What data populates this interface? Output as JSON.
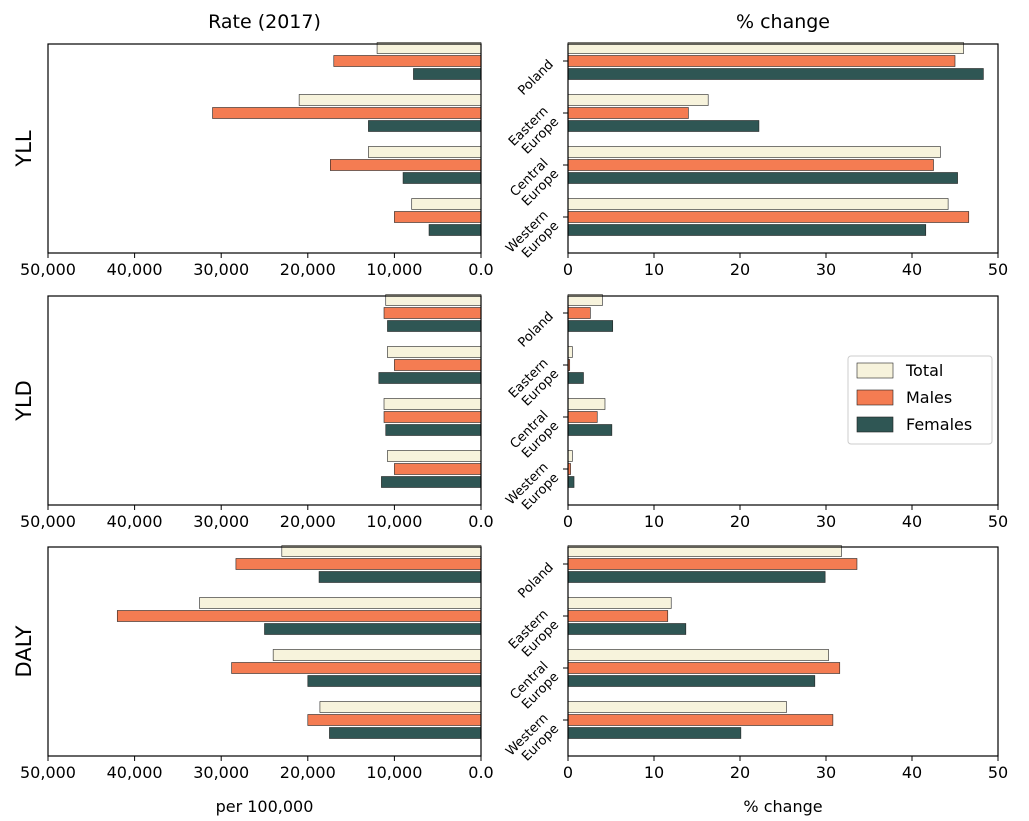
{
  "chart_data": {
    "type": "bar",
    "orientation": "horizontal",
    "column_titles": [
      "Rate (2017)",
      "% change"
    ],
    "row_labels": [
      "YLL",
      "YLD",
      "DALY"
    ],
    "categories": [
      "Poland",
      "Eastern Europe",
      "Central Europe",
      "Western Europe"
    ],
    "category_label_lines": [
      [
        "Poland"
      ],
      [
        "Eastern",
        "Europe"
      ],
      [
        "Central",
        "Europe"
      ],
      [
        "Western",
        "Europe"
      ]
    ],
    "series_names": [
      "Total",
      "Males",
      "Females"
    ],
    "colors": {
      "Total": "#f7f3dc",
      "Males": "#f47c52",
      "Females": "#2f5654"
    },
    "rate_axis": {
      "xlim": [
        50000,
        0
      ],
      "ticks": [
        50000,
        40000,
        30000,
        20000,
        10000,
        0
      ],
      "tick_labels": [
        "50,000",
        "40,000",
        "30,000",
        "20,000",
        "10,000",
        "0.0"
      ],
      "xlabel": "per 100,000",
      "inverted": true
    },
    "change_axis": {
      "xlim": [
        0,
        50
      ],
      "ticks": [
        0,
        10,
        20,
        30,
        40,
        50
      ],
      "tick_labels": [
        "0",
        "10",
        "20",
        "30",
        "40",
        "50"
      ],
      "xlabel": "% change"
    },
    "legend": {
      "entries": [
        "Total",
        "Males",
        "Females"
      ],
      "placement": "right"
    },
    "panels": [
      {
        "row": "YLL",
        "column": "Rate (2017)",
        "series": [
          {
            "name": "Total",
            "values": [
              12000,
              21000,
              13000,
              8000
            ]
          },
          {
            "name": "Males",
            "values": [
              17000,
              31000,
              17400,
              10000
            ]
          },
          {
            "name": "Females",
            "values": [
              7800,
              13000,
              9000,
              6000
            ]
          }
        ]
      },
      {
        "row": "YLL",
        "column": "% change",
        "series": [
          {
            "name": "Total",
            "values": [
              46,
              16.3,
              43.3,
              44.2
            ]
          },
          {
            "name": "Males",
            "values": [
              45,
              14,
              42.5,
              46.6
            ]
          },
          {
            "name": "Females",
            "values": [
              48.3,
              22.2,
              45.3,
              41.6
            ]
          }
        ]
      },
      {
        "row": "YLD",
        "column": "Rate (2017)",
        "series": [
          {
            "name": "Total",
            "values": [
              11000,
              10800,
              11200,
              10800
            ]
          },
          {
            "name": "Males",
            "values": [
              11200,
              10000,
              11200,
              10000
            ]
          },
          {
            "name": "Females",
            "values": [
              10800,
              11800,
              11000,
              11500
            ]
          }
        ]
      },
      {
        "row": "YLD",
        "column": "% change",
        "series": [
          {
            "name": "Total",
            "values": [
              4,
              0.5,
              4.3,
              0.5
            ]
          },
          {
            "name": "Males",
            "values": [
              2.6,
              0.2,
              3.4,
              0.3
            ]
          },
          {
            "name": "Females",
            "values": [
              5.2,
              1.8,
              5.1,
              0.7
            ]
          }
        ]
      },
      {
        "row": "DALY",
        "column": "Rate (2017)",
        "series": [
          {
            "name": "Total",
            "values": [
              23000,
              32500,
              24000,
              18600
            ]
          },
          {
            "name": "Males",
            "values": [
              28300,
              42000,
              28800,
              20000
            ]
          },
          {
            "name": "Females",
            "values": [
              18700,
              25000,
              20000,
              17500
            ]
          }
        ]
      },
      {
        "row": "DALY",
        "column": "% change",
        "series": [
          {
            "name": "Total",
            "values": [
              31.8,
              12,
              30.3,
              25.4
            ]
          },
          {
            "name": "Males",
            "values": [
              33.6,
              11.6,
              31.6,
              30.8
            ]
          },
          {
            "name": "Females",
            "values": [
              29.9,
              13.7,
              28.7,
              20.1
            ]
          }
        ]
      }
    ]
  }
}
